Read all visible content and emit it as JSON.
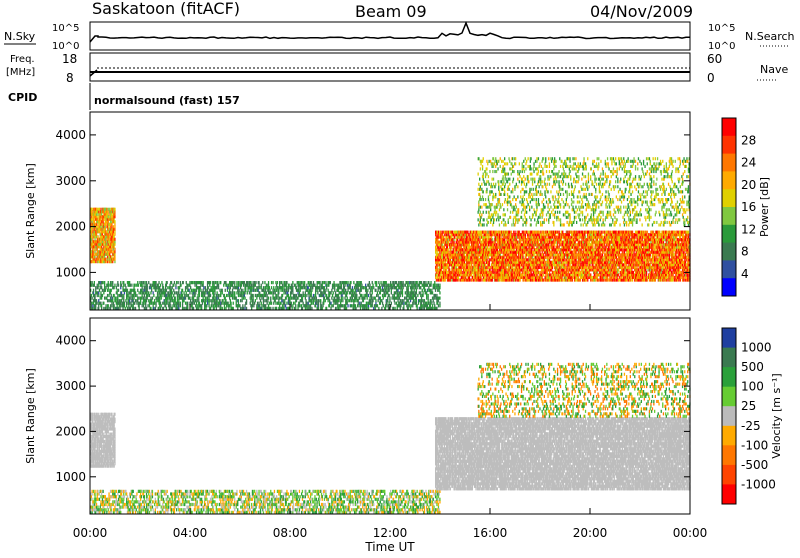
{
  "header": {
    "station": "Saskatoon (fitACF)",
    "beam": "Beam 09",
    "date": "04/Nov/2009"
  },
  "top_panels": {
    "nsky_label": "N.Sky",
    "nsky_ticks": [
      "10^5",
      "10^0"
    ],
    "nsearch_label": "N.Search",
    "freq_label_1": "Freq.",
    "freq_label_2": "[MHz]",
    "freq_ticks": [
      "18",
      "8"
    ],
    "nave_label": "Nave",
    "nave_ticks": [
      "60",
      "0"
    ],
    "right_nsky_ticks": [
      "10^5",
      "10^0"
    ],
    "cpid_label": "CPID",
    "cpid_text": "normalsound (fast) 157"
  },
  "x_axis": {
    "label": "Time UT",
    "ticks": [
      "00:00",
      "04:00",
      "08:00",
      "12:00",
      "16:00",
      "20:00",
      "00:00"
    ],
    "range_hours": [
      0,
      24
    ]
  },
  "power_panel": {
    "ylabel": "Slant Range [km]",
    "yticks": [
      "4000",
      "3000",
      "2000",
      "1000"
    ],
    "cbar_label": "Power [dB]",
    "cbar_ticks": [
      "28",
      "24",
      "20",
      "16",
      "12",
      "8",
      "4"
    ],
    "cbar_colors": [
      "#ff0000",
      "#ff3300",
      "#ff7700",
      "#ffaa00",
      "#e0d000",
      "#80c840",
      "#2a9a3a",
      "#3a7a50",
      "#3050a0",
      "#0000ff"
    ]
  },
  "velocity_panel": {
    "ylabel": "Slant Range [km]",
    "yticks": [
      "4000",
      "3000",
      "2000",
      "1000"
    ],
    "cbar_label": "Velocity [m s⁻¹]",
    "cbar_ticks": [
      "1000",
      "500",
      "100",
      "25",
      "-25",
      "-100",
      "-500",
      "-1000"
    ],
    "cbar_colors": [
      "#1f3fa0",
      "#3a7a50",
      "#2aa03a",
      "#66cc33",
      "#bbbbbb",
      "#ffaa00",
      "#ff7700",
      "#ff4400",
      "#ff0000"
    ]
  },
  "chart_data": {
    "type": "heatmap",
    "x": "Time UT (hours)",
    "xlim": [
      0,
      24
    ],
    "ylim": [
      180,
      4500
    ],
    "ylabel": "Slant Range [km]",
    "xlabel": "Time UT",
    "power_clim": [
      0,
      30
    ],
    "velocity_clim": [
      -1000,
      1000
    ],
    "power_features": [
      {
        "t_start": 0.0,
        "t_end": 1.0,
        "range_start": 1200,
        "range_end": 2400,
        "power_db": 20
      },
      {
        "t_start": 0.0,
        "t_end": 14.0,
        "range_start": 180,
        "range_end": 800,
        "power_db": 8
      },
      {
        "t_start": 13.8,
        "t_end": 24.0,
        "range_start": 800,
        "range_end": 1900,
        "power_db": 24
      },
      {
        "t_start": 15.5,
        "t_end": 24.0,
        "range_start": 2000,
        "range_end": 3500,
        "power_db": 14
      }
    ],
    "velocity_features": [
      {
        "t_start": 0.0,
        "t_end": 1.0,
        "range_start": 1200,
        "range_end": 2400,
        "velocity": 0
      },
      {
        "t_start": 0.0,
        "t_end": 14.0,
        "range_start": 180,
        "range_end": 700,
        "velocity": 50
      },
      {
        "t_start": 13.8,
        "t_end": 24.0,
        "range_start": 700,
        "range_end": 2300,
        "velocity": 0
      },
      {
        "t_start": 15.5,
        "t_end": 24.0,
        "range_start": 2300,
        "range_end": 3500,
        "velocity": 150
      }
    ]
  }
}
